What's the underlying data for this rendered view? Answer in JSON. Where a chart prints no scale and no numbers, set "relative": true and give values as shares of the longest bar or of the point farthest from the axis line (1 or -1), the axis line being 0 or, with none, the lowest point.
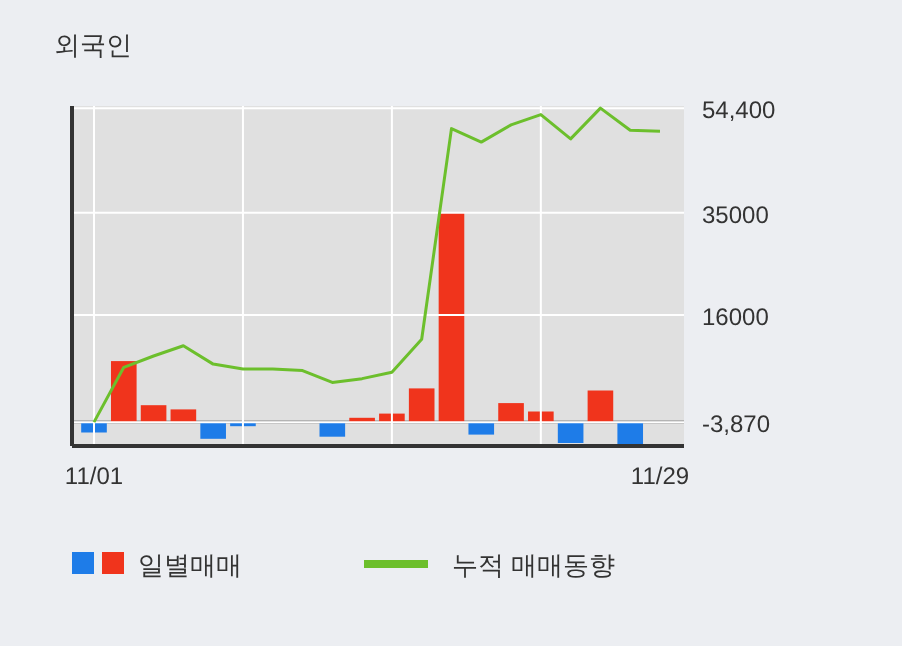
{
  "chart_data": [
    {
      "type": "bar",
      "relative": true,
      "legend": "bottom",
      "categories": [
        "11/01",
        null,
        null,
        null,
        null,
        null,
        null,
        null,
        null,
        null,
        null,
        null,
        null,
        null,
        null,
        null,
        null,
        null,
        null,
        "11/29"
      ],
      "series": [
        {
          "name": "일별매매",
          "colors": [
            "#1e7ce8",
            "#f0341c",
            "#f0341c",
            "#f0341c",
            "#1e7ce8",
            "#1e7ce8",
            null,
            null,
            "#1e7ce8",
            "#f0341c",
            "#f0341c",
            "#f0341c",
            "#f0341c",
            "#1e7ce8",
            "#f0341c",
            "#f0341c",
            "#1e7ce8",
            "#f0341c",
            "#1e7ce8",
            null
          ],
          "values": [
            -0.05,
            0.29,
            0.08,
            0.06,
            -0.08,
            -0.02,
            null,
            null,
            -0.07,
            0.02,
            0.04,
            0.16,
            1,
            -0.06,
            0.09,
            0.05,
            -0.1,
            0.15,
            -0.12,
            null
          ]
        }
      ]
    },
    {
      "type": "line",
      "title": "외국인",
      "legend": "bottom",
      "tick_labels": "y",
      "categories": [
        null,
        null,
        null,
        null,
        null,
        null,
        null,
        null,
        null,
        null,
        null,
        null,
        null,
        null,
        null,
        null,
        null,
        null,
        null,
        null
      ],
      "ylim": [
        -8300,
        54800
      ],
      "yticks": [
        {
          "value": 54400,
          "label": "54,400"
        },
        35000,
        16000,
        {
          "value": -3870,
          "label": "-3,870"
        }
      ],
      "grid": true,
      "series": [
        {
          "name": "누적 매매동향",
          "color": "#6cbf2c",
          "values": [
            -3870,
            6300,
            8400,
            10300,
            6900,
            6000,
            6000,
            5700,
            3500,
            4200,
            5400,
            11500,
            50600,
            48100,
            51300,
            53200,
            48700,
            54400,
            50300,
            50100
          ]
        }
      ]
    }
  ]
}
